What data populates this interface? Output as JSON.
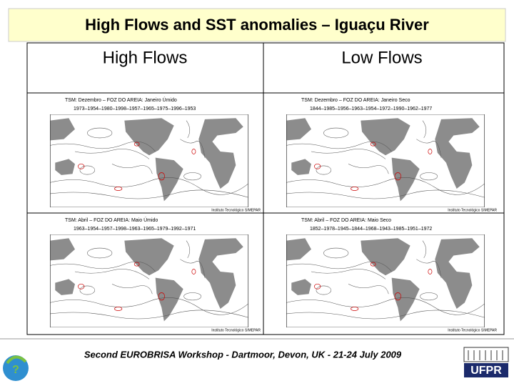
{
  "title": "High Flows and SST anomalies – Iguaçu River",
  "columns": [
    "High Flows",
    "Low Flows"
  ],
  "maps": [
    {
      "heading": "TSM: Dezembro – FOZ DO AREIA: Janeiro Úmido",
      "years": "1973–1954–1980–1998–1957–1965–1975–1996–1953",
      "credit": "Instituto Tecnológico SIMEPAR"
    },
    {
      "heading": "TSM: Dezembro – FOZ DO AREIA: Janeiro Seco",
      "years": "1844–1985–1956–1963–1954–1972–1990–1962–1977",
      "credit": "Instituto Tecnológico SIMEPAR"
    },
    {
      "heading": "TSM: Abril – FOZ DO AREIA: Maio Úmido",
      "years": "1963–1954–1957–1998–1963–1965–1979–1992–1971",
      "credit": "Instituto Tecnológico SIMEPAR"
    },
    {
      "heading": "TSM: Abril – FOZ DO AREIA: Maio Seco",
      "years": "1852–1978–1945–1844–1968–1943–1985–1951–1972",
      "credit": "Instituto Tecnológico SIMEPAR"
    }
  ],
  "footer": "Second EUROBRISA Workshop - Dartmoor, Devon, UK - 21-24 July 2009",
  "logo_right": "UFPR"
}
